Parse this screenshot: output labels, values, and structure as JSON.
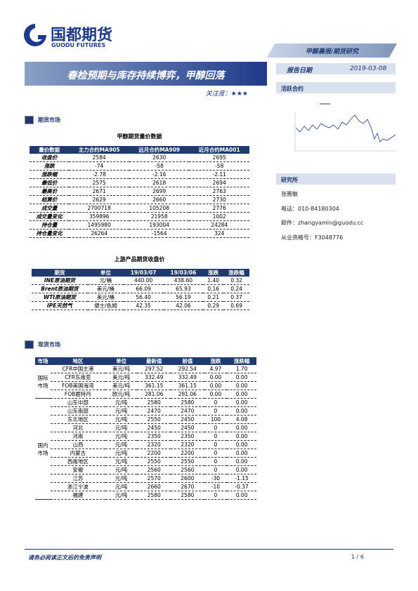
{
  "header": {
    "logo_cn": "国都期货",
    "logo_en": "GUODU FUTURES",
    "category": "甲醇晨报/期货研究",
    "title": "春检预期与库存持续博弈，甲醇回落",
    "attention": "关注度：★★★",
    "report_date_label": "报告日期",
    "report_date": "2019-03-08"
  },
  "sidebar": {
    "active_contract": "活跃合约",
    "research_title": "研究所",
    "analyst": "张雅敏",
    "phone": "电话：010-84180304",
    "email": "邮件：zhangyamin@guodu.cc",
    "license": "从业资格号：F3048776"
  },
  "futures": {
    "section": "期货市场",
    "table1": {
      "title": "甲醇期货量价数据",
      "headers": [
        "量价数据",
        "主力合约MA905",
        "远月合约MA909",
        "近月合约MA001"
      ],
      "rows": [
        [
          "收盘价",
          "2584",
          "2630",
          "2695"
        ],
        [
          "涨跌",
          "-74",
          "-58",
          "-58"
        ],
        [
          "涨跌幅",
          "-2.78",
          "-2.16",
          "-2.11"
        ],
        [
          "最低价",
          "2575",
          "2618",
          "2694"
        ],
        [
          "最高价",
          "2671",
          "2699",
          "2763"
        ],
        [
          "结算价",
          "2629",
          "2660",
          "2730"
        ],
        [
          "成交量",
          "2700718",
          "105208",
          "2776"
        ],
        [
          "成交量变化",
          "359896",
          "21958",
          "1002"
        ],
        [
          "持仓量",
          "1495980",
          "193004",
          "24284"
        ],
        [
          "持仓量变化",
          "26264",
          "-1564",
          "324"
        ]
      ]
    },
    "table2": {
      "title": "上游产品期货收盘价",
      "headers": [
        "期货",
        "单位",
        "19/03/07",
        "19/03/06",
        "涨跌",
        "涨跌幅"
      ],
      "rows": [
        [
          "INE原油期货",
          "元/桶",
          "440.00",
          "438.60",
          "1.40",
          "0.32"
        ],
        [
          "Brent原油期货",
          "美元/桶",
          "66.09",
          "65.93",
          "0.16",
          "0.24"
        ],
        [
          "WTI原油期货",
          "美元/桶",
          "56.40",
          "56.19",
          "0.21",
          "0.37"
        ],
        [
          "IPE天然气",
          "便士/色姆",
          "42.35",
          "42.06",
          "0.29",
          "0.69"
        ]
      ]
    }
  },
  "spot": {
    "section": "现货市场",
    "headers": [
      "市场",
      "地区",
      "单位",
      "最新值",
      "前值",
      "涨跌",
      "涨跌幅"
    ],
    "groups": [
      {
        "market": "国际市场",
        "rows": [
          [
            "CFR中国主港",
            "美元/吨",
            "297.52",
            "292.54",
            "4.97",
            "1.70"
          ],
          [
            "CFR东南亚",
            "美元/吨",
            "332.49",
            "332.49",
            "0.00",
            "0.00"
          ],
          [
            "FOB美国海湾",
            "美元/吨",
            "361.15",
            "361.15",
            "0.00",
            "0.00"
          ],
          [
            "FOB鹿特丹",
            "欧元/吨",
            "281.06",
            "281.06",
            "0.00",
            "0.00"
          ]
        ]
      },
      {
        "market": "国内市场",
        "rows": [
          [
            "山东中部",
            "元/吨",
            "2580",
            "2580",
            "0",
            "0.00"
          ],
          [
            "山东南部",
            "元/吨",
            "2470",
            "2470",
            "0",
            "0.00"
          ],
          [
            "东北地区",
            "元/吨",
            "2550",
            "2450",
            "100",
            "4.08"
          ],
          [
            "河北",
            "元/吨",
            "2450",
            "2450",
            "0",
            "0.00"
          ],
          [
            "河南",
            "元/吨",
            "2350",
            "2350",
            "0",
            "0.00"
          ],
          [
            "山西",
            "元/吨",
            "2320",
            "2320",
            "0",
            "0.00"
          ],
          [
            "内蒙古",
            "元/吨",
            "2200",
            "2200",
            "0",
            "0.00"
          ],
          [
            "西南地区",
            "元/吨",
            "2550",
            "2550",
            "0",
            "0.00"
          ],
          [
            "安徽",
            "元/吨",
            "2560",
            "2560",
            "0",
            "0.00"
          ],
          [
            "江苏",
            "元/吨",
            "2570",
            "2600",
            "-30",
            "-1.15"
          ],
          [
            "浙江宁波",
            "元/吨",
            "2660",
            "2670",
            "-10",
            "-0.37"
          ],
          [
            "福建",
            "元/吨",
            "2580",
            "2580",
            "0",
            "0.00"
          ]
        ]
      }
    ]
  },
  "footer": {
    "disclaimer": "请务必阅读正文后的免责声明",
    "page": "1 / 6"
  }
}
